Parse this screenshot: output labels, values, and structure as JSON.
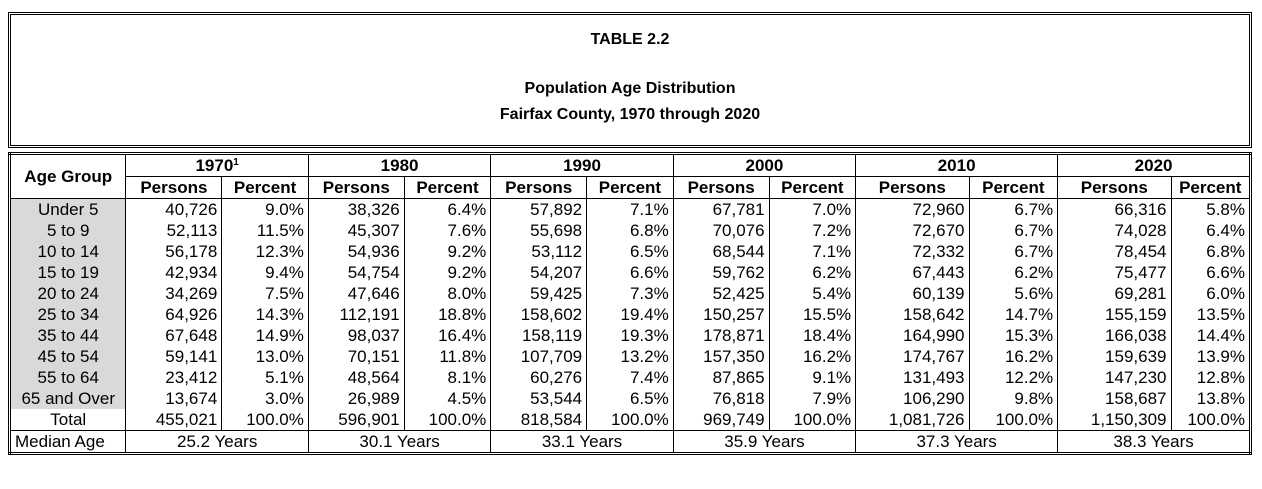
{
  "title": {
    "table_number": "TABLE 2.2",
    "heading": "Population Age Distribution",
    "subheading": "Fairfax County, 1970 through 2020"
  },
  "header": {
    "age_group": "Age Group",
    "years": [
      "1970",
      "1980",
      "1990",
      "2000",
      "2010",
      "2020"
    ],
    "footnote_marker": "1",
    "persons": "Persons",
    "percent": "Percent"
  },
  "rows": [
    {
      "age": "Under 5",
      "v": [
        "40,726",
        "9.0%",
        "38,326",
        "6.4%",
        "57,892",
        "7.1%",
        "67,781",
        "7.0%",
        "72,960",
        "6.7%",
        "66,316",
        "5.8%"
      ]
    },
    {
      "age": "5 to 9",
      "v": [
        "52,113",
        "11.5%",
        "45,307",
        "7.6%",
        "55,698",
        "6.8%",
        "70,076",
        "7.2%",
        "72,670",
        "6.7%",
        "74,028",
        "6.4%"
      ]
    },
    {
      "age": "10 to 14",
      "v": [
        "56,178",
        "12.3%",
        "54,936",
        "9.2%",
        "53,112",
        "6.5%",
        "68,544",
        "7.1%",
        "72,332",
        "6.7%",
        "78,454",
        "6.8%"
      ]
    },
    {
      "age": "15 to 19",
      "v": [
        "42,934",
        "9.4%",
        "54,754",
        "9.2%",
        "54,207",
        "6.6%",
        "59,762",
        "6.2%",
        "67,443",
        "6.2%",
        "75,477",
        "6.6%"
      ]
    },
    {
      "age": "20 to 24",
      "v": [
        "34,269",
        "7.5%",
        "47,646",
        "8.0%",
        "59,425",
        "7.3%",
        "52,425",
        "5.4%",
        "60,139",
        "5.6%",
        "69,281",
        "6.0%"
      ]
    },
    {
      "age": "25 to 34",
      "v": [
        "64,926",
        "14.3%",
        "112,191",
        "18.8%",
        "158,602",
        "19.4%",
        "150,257",
        "15.5%",
        "158,642",
        "14.7%",
        "155,159",
        "13.5%"
      ]
    },
    {
      "age": "35 to 44",
      "v": [
        "67,648",
        "14.9%",
        "98,037",
        "16.4%",
        "158,119",
        "19.3%",
        "178,871",
        "18.4%",
        "164,990",
        "15.3%",
        "166,038",
        "14.4%"
      ]
    },
    {
      "age": "45 to 54",
      "v": [
        "59,141",
        "13.0%",
        "70,151",
        "11.8%",
        "107,709",
        "13.2%",
        "157,350",
        "16.2%",
        "174,767",
        "16.2%",
        "159,639",
        "13.9%"
      ]
    },
    {
      "age": "55 to 64",
      "v": [
        "23,412",
        "5.1%",
        "48,564",
        "8.1%",
        "60,276",
        "7.4%",
        "87,865",
        "9.1%",
        "131,493",
        "12.2%",
        "147,230",
        "12.8%"
      ]
    },
    {
      "age": "65 and Over",
      "v": [
        "13,674",
        "3.0%",
        "26,989",
        "4.5%",
        "53,544",
        "6.5%",
        "76,818",
        "7.9%",
        "106,290",
        "9.8%",
        "158,687",
        "13.8%"
      ]
    }
  ],
  "total": {
    "age": "Total",
    "v": [
      "455,021",
      "100.0%",
      "596,901",
      "100.0%",
      "818,584",
      "100.0%",
      "969,749",
      "100.0%",
      "1,081,726",
      "100.0%",
      "1,150,309",
      "100.0%"
    ]
  },
  "median": {
    "label": "Median Age",
    "v": [
      "25.2 Years",
      "30.1 Years",
      "33.1 Years",
      "35.9 Years",
      "37.3 Years",
      "38.3 Years"
    ]
  }
}
